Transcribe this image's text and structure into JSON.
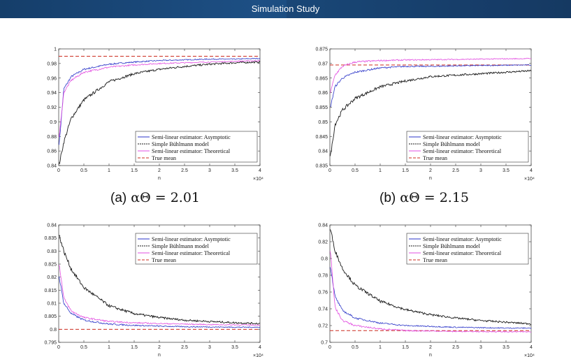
{
  "header": {
    "title": "Simulation Study"
  },
  "captions": [
    {
      "label": "(a)",
      "formula": "αΘ = 2.01"
    },
    {
      "label": "(b)",
      "formula": "αΘ = 2.15"
    }
  ],
  "colors": {
    "asymptotic": "#2b35c8",
    "buhlmann": "#1a1a1a",
    "theoretical": "#e24de0",
    "true_mean": "#cc2b1f"
  },
  "chart_data": [
    {
      "type": "line",
      "id": "a",
      "xlabel": "n",
      "x_exponent": "×10⁴",
      "xlim": [
        0,
        4
      ],
      "ylim": [
        0.84,
        1.0
      ],
      "xticks": [
        "0",
        "0.5",
        "1",
        "1.5",
        "2",
        "2.5",
        "3",
        "3.5",
        "4"
      ],
      "yticks": [
        "0.84",
        "0.86",
        "0.88",
        "0.9",
        "0.92",
        "0.94",
        "0.96",
        "0.98",
        "1"
      ],
      "ytick_values": [
        0.84,
        0.86,
        0.88,
        0.9,
        0.92,
        0.94,
        0.96,
        0.98,
        1.0
      ],
      "legend": [
        "Semi-linear estimator: Asymptotic",
        "Simple Bühlmann model",
        "Semi-linear estimator: Theoretical",
        "True mean"
      ],
      "legend_position": "bottom-right",
      "true_mean": 0.99,
      "series": [
        {
          "name": "Semi-linear estimator: Asymptotic",
          "x": [
            0.01,
            0.1,
            0.25,
            0.5,
            1,
            1.5,
            2,
            2.5,
            3,
            3.5,
            4
          ],
          "values": [
            0.87,
            0.945,
            0.962,
            0.972,
            0.979,
            0.982,
            0.984,
            0.985,
            0.986,
            0.986,
            0.987
          ]
        },
        {
          "name": "Simple Bühlmann model",
          "x": [
            0.01,
            0.1,
            0.25,
            0.5,
            1,
            1.5,
            2,
            2.5,
            3,
            3.5,
            4
          ],
          "values": [
            0.842,
            0.872,
            0.905,
            0.93,
            0.955,
            0.966,
            0.972,
            0.976,
            0.979,
            0.981,
            0.982
          ]
        },
        {
          "name": "Semi-linear estimator: Theoretical",
          "x": [
            0.01,
            0.1,
            0.25,
            0.5,
            1,
            1.5,
            2,
            2.5,
            3,
            3.5,
            4
          ],
          "values": [
            0.88,
            0.94,
            0.957,
            0.968,
            0.975,
            0.978,
            0.98,
            0.981,
            0.982,
            0.983,
            0.984
          ]
        }
      ]
    },
    {
      "type": "line",
      "id": "b",
      "xlabel": "n",
      "x_exponent": "×10⁴",
      "xlim": [
        0,
        4
      ],
      "ylim": [
        0.835,
        0.875
      ],
      "xticks": [
        "0",
        "0.5",
        "1",
        "1.5",
        "2",
        "2.5",
        "3",
        "3.5",
        "4"
      ],
      "yticks": [
        "0.835",
        "0.84",
        "0.845",
        "0.85",
        "0.855",
        "0.86",
        "0.865",
        "0.87",
        "0.875"
      ],
      "ytick_values": [
        0.835,
        0.84,
        0.845,
        0.85,
        0.855,
        0.86,
        0.865,
        0.87,
        0.875
      ],
      "legend": [
        "Semi-linear estimator: Asymptotic",
        "Simple Bühlmann model",
        "Semi-linear estimator: Theoretical",
        "True mean"
      ],
      "legend_position": "bottom-right",
      "true_mean": 0.8695,
      "series": [
        {
          "name": "Semi-linear estimator: Asymptotic",
          "x": [
            0.01,
            0.1,
            0.25,
            0.5,
            1,
            1.5,
            2,
            2.5,
            3,
            3.5,
            4
          ],
          "values": [
            0.855,
            0.862,
            0.865,
            0.867,
            0.8685,
            0.869,
            0.869,
            0.8692,
            0.8693,
            0.8694,
            0.8695
          ]
        },
        {
          "name": "Simple Bühlmann model",
          "x": [
            0.01,
            0.1,
            0.25,
            0.5,
            1,
            1.5,
            2,
            2.5,
            3,
            3.5,
            4
          ],
          "values": [
            0.838,
            0.849,
            0.854,
            0.858,
            0.862,
            0.864,
            0.8655,
            0.866,
            0.8665,
            0.867,
            0.8675
          ]
        },
        {
          "name": "Semi-linear estimator: Theoretical",
          "x": [
            0.01,
            0.1,
            0.25,
            0.5,
            1,
            1.5,
            2,
            2.5,
            3,
            3.5,
            4
          ],
          "values": [
            0.86,
            0.866,
            0.869,
            0.8705,
            0.871,
            0.8712,
            0.8713,
            0.8714,
            0.8715,
            0.8716,
            0.8717
          ]
        }
      ]
    },
    {
      "type": "line",
      "id": "c",
      "xlabel": "n",
      "x_exponent": "×10⁴",
      "xlim": [
        0,
        4
      ],
      "ylim": [
        0.795,
        0.84
      ],
      "xticks": [
        "0",
        "0.5",
        "1",
        "1.5",
        "2",
        "2.5",
        "3",
        "3.5",
        "4"
      ],
      "yticks": [
        "0.795",
        "0.8",
        "0.805",
        "0.81",
        "0.815",
        "0.82",
        "0.825",
        "0.83",
        "0.835",
        "0.84"
      ],
      "ytick_values": [
        0.795,
        0.8,
        0.805,
        0.81,
        0.815,
        0.82,
        0.825,
        0.83,
        0.835,
        0.84
      ],
      "legend": [
        "Semi-linear estimator: Asymptotic",
        "Simple Bühlmann model",
        "Semi-linear estimator: Theoretical",
        "True mean"
      ],
      "legend_position": "top-right",
      "true_mean": 0.8,
      "series": [
        {
          "name": "Semi-linear estimator: Asymptotic",
          "x": [
            0.01,
            0.1,
            0.25,
            0.5,
            1,
            1.5,
            2,
            2.5,
            3,
            3.5,
            4
          ],
          "values": [
            0.82,
            0.81,
            0.806,
            0.8035,
            0.802,
            0.8015,
            0.8012,
            0.801,
            0.8009,
            0.8008,
            0.8008
          ]
        },
        {
          "name": "Simple Bühlmann model",
          "x": [
            0.01,
            0.1,
            0.25,
            0.5,
            1,
            1.5,
            2,
            2.5,
            3,
            3.5,
            4
          ],
          "values": [
            0.836,
            0.83,
            0.823,
            0.816,
            0.809,
            0.806,
            0.8045,
            0.8035,
            0.803,
            0.8025,
            0.8022
          ]
        },
        {
          "name": "Semi-linear estimator: Theoretical",
          "x": [
            0.01,
            0.1,
            0.25,
            0.5,
            1,
            1.5,
            2,
            2.5,
            3,
            3.5,
            4
          ],
          "values": [
            0.825,
            0.812,
            0.807,
            0.8045,
            0.803,
            0.8025,
            0.8022,
            0.802,
            0.8018,
            0.8017,
            0.8016
          ]
        }
      ]
    },
    {
      "type": "line",
      "id": "d",
      "xlabel": "n",
      "x_exponent": "×10⁴",
      "xlim": [
        0,
        4
      ],
      "ylim": [
        0.7,
        0.84
      ],
      "xticks": [
        "0",
        "0.5",
        "1",
        "1.5",
        "2",
        "2.5",
        "3",
        "3.5",
        "4"
      ],
      "yticks": [
        "0.7",
        "0.72",
        "0.74",
        "0.76",
        "0.78",
        "0.8",
        "0.82",
        "0.84"
      ],
      "ytick_values": [
        0.7,
        0.72,
        0.74,
        0.76,
        0.78,
        0.8,
        0.82,
        0.84
      ],
      "legend": [
        "Semi-linear estimator: Asymptotic",
        "Simple Bühlmann model",
        "Semi-linear estimator: Theoretical",
        "True mean"
      ],
      "legend_position": "top-right",
      "true_mean": 0.714,
      "series": [
        {
          "name": "Semi-linear estimator: Asymptotic",
          "x": [
            0.01,
            0.1,
            0.25,
            0.5,
            1,
            1.5,
            2,
            2.5,
            3,
            3.5,
            4
          ],
          "values": [
            0.79,
            0.755,
            0.738,
            0.729,
            0.723,
            0.72,
            0.719,
            0.718,
            0.7175,
            0.717,
            0.717
          ]
        },
        {
          "name": "Simple Bühlmann model",
          "x": [
            0.01,
            0.1,
            0.25,
            0.5,
            1,
            1.5,
            2,
            2.5,
            3,
            3.5,
            4
          ],
          "values": [
            0.835,
            0.81,
            0.788,
            0.768,
            0.749,
            0.739,
            0.733,
            0.729,
            0.726,
            0.724,
            0.722
          ]
        },
        {
          "name": "Semi-linear estimator: Theoretical",
          "x": [
            0.01,
            0.1,
            0.25,
            0.5,
            1,
            1.5,
            2,
            2.5,
            3,
            3.5,
            4
          ],
          "values": [
            0.81,
            0.742,
            0.726,
            0.72,
            0.716,
            0.714,
            0.7135,
            0.713,
            0.7128,
            0.7126,
            0.7125
          ]
        }
      ]
    }
  ]
}
